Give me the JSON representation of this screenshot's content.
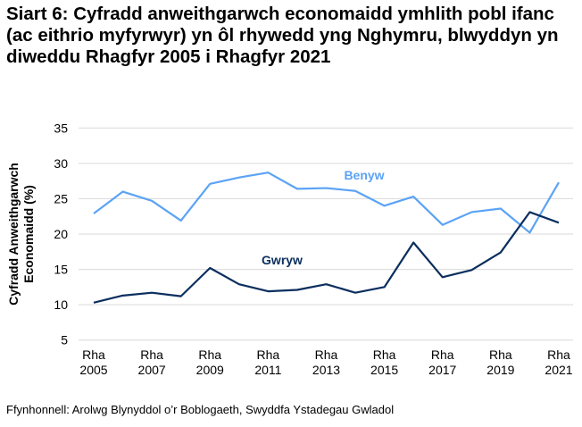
{
  "title": "Siart 6: Cyfradd anweithgarwch economaidd ymhlith pobl ifanc (ac eithrio myfyrwyr) yn ôl rhywedd yng Nghymru, blwyddyn yn diweddu Rhagfyr 2005 i Rhagfyr 2021",
  "source": "Ffynhonnell: Arolwg Blynyddol o’r Boblogaeth, Swyddfa Ystadegau Gwladol",
  "chart_data": {
    "type": "line",
    "title": "Siart 6: Cyfradd anweithgarwch economaidd ymhlith pobl ifanc (ac eithrio myfyrwyr) yn ôl rhywedd yng Nghymru, blwyddyn yn diweddu Rhagfyr 2005 i Rhagfyr 2021",
    "ylabel_lines": [
      "Cyfradd Anweithgarwch",
      "Economaidd (%)"
    ],
    "xlabel": "",
    "ylim": [
      5,
      35
    ],
    "yticks": [
      5,
      10,
      15,
      20,
      25,
      30,
      35
    ],
    "grid": true,
    "x": [
      2005,
      2006,
      2007,
      2008,
      2009,
      2010,
      2011,
      2012,
      2013,
      2014,
      2015,
      2016,
      2017,
      2018,
      2019,
      2020,
      2021
    ],
    "xtick_labels": [
      {
        "year": 2005,
        "line1": "Rha",
        "line2": "2005"
      },
      {
        "year": 2007,
        "line1": "Rha",
        "line2": "2007"
      },
      {
        "year": 2009,
        "line1": "Rha",
        "line2": "2009"
      },
      {
        "year": 2011,
        "line1": "Rha",
        "line2": "2011"
      },
      {
        "year": 2013,
        "line1": "Rha",
        "line2": "2013"
      },
      {
        "year": 2015,
        "line1": "Rha",
        "line2": "2015"
      },
      {
        "year": 2017,
        "line1": "Rha",
        "line2": "2017"
      },
      {
        "year": 2019,
        "line1": "Rha",
        "line2": "2019"
      },
      {
        "year": 2021,
        "line1": "Rha",
        "line2": "2021"
      }
    ],
    "series": [
      {
        "name": "Benyw",
        "color": "#5ba3f5",
        "values": [
          22.9,
          26.0,
          24.7,
          21.9,
          27.1,
          28.0,
          28.7,
          26.4,
          26.5,
          26.1,
          24.0,
          25.3,
          21.3,
          23.1,
          23.6,
          20.2,
          27.3
        ]
      },
      {
        "name": "Gwryw",
        "color": "#0b2e5e",
        "values": [
          10.3,
          11.3,
          11.7,
          11.2,
          15.2,
          12.9,
          11.9,
          12.1,
          12.9,
          11.7,
          12.5,
          18.8,
          13.9,
          14.9,
          17.4,
          23.1,
          21.6
        ]
      }
    ]
  }
}
